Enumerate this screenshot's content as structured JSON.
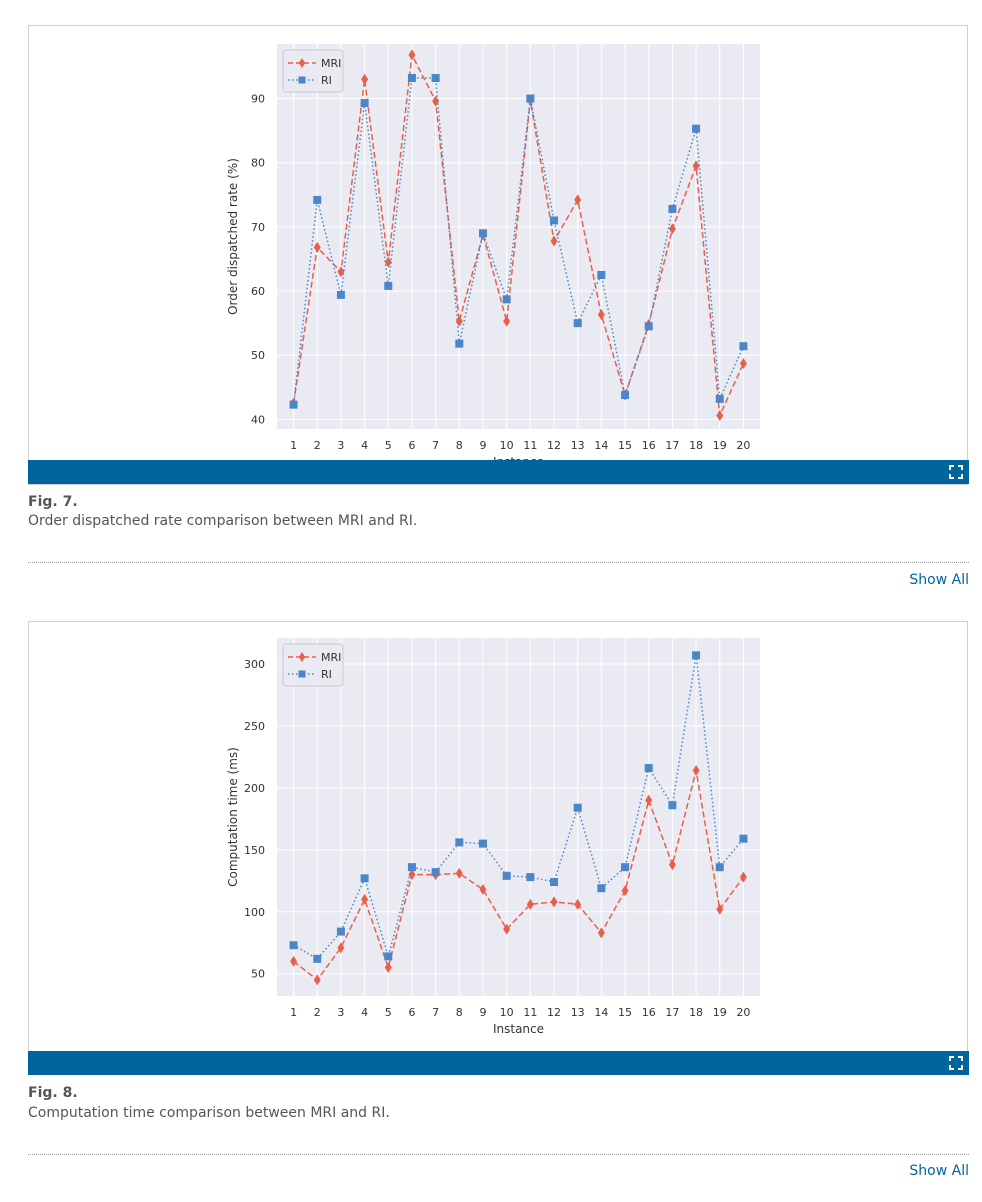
{
  "figures": [
    {
      "label": "Fig. 7.",
      "caption": "Order dispatched rate comparison between MRI and RI.",
      "show_all": "Show All",
      "chart_data": {
        "type": "line",
        "x": [
          1,
          2,
          3,
          4,
          5,
          6,
          7,
          8,
          9,
          10,
          11,
          12,
          13,
          14,
          15,
          16,
          17,
          18,
          19,
          20
        ],
        "xlabel": "Instance",
        "ylabel": "Order dispatched rate (%)",
        "ylim": [
          38.5,
          98.5
        ],
        "yticks": [
          40,
          50,
          60,
          70,
          80,
          90
        ],
        "grid": true,
        "legend": "top-left",
        "series": [
          {
            "name": "MRI",
            "color": "#e8604c",
            "marker": "diamond",
            "linestyle": "dashed",
            "values": [
              42.5,
              66.8,
              63,
              93,
              64.5,
              96.8,
              89.6,
              55.3,
              68.8,
              55.3,
              89.7,
              67.8,
              74.2,
              56.3,
              43.8,
              54.8,
              69.7,
              79.5,
              40.6,
              48.7
            ]
          },
          {
            "name": "RI",
            "color": "#4a86c8",
            "marker": "square",
            "linestyle": "dotted",
            "values": [
              42.3,
              74.2,
              59.4,
              89.3,
              60.8,
              93.2,
              93.2,
              51.8,
              69,
              58.7,
              90,
              71,
              55,
              62.5,
              43.8,
              54.5,
              72.8,
              85.3,
              43.2,
              51.4
            ]
          }
        ]
      }
    },
    {
      "label": "Fig. 8.",
      "caption": "Computation time comparison between MRI and RI.",
      "show_all": "Show All",
      "chart_data": {
        "type": "line",
        "x": [
          1,
          2,
          3,
          4,
          5,
          6,
          7,
          8,
          9,
          10,
          11,
          12,
          13,
          14,
          15,
          16,
          17,
          18,
          19,
          20
        ],
        "xlabel": "Instance",
        "ylabel": "Computation time (ms)",
        "ylim": [
          32,
          321
        ],
        "yticks": [
          50,
          100,
          150,
          200,
          250,
          300
        ],
        "grid": true,
        "legend": "top-left",
        "series": [
          {
            "name": "MRI",
            "color": "#e8604c",
            "marker": "diamond",
            "linestyle": "dashed",
            "values": [
              60,
              45,
              71,
              110,
              55,
              130,
              130,
              131,
              118,
              86,
              106,
              108,
              106,
              83,
              117,
              190,
              138,
              214,
              102,
              128
            ]
          },
          {
            "name": "RI",
            "color": "#4a86c8",
            "marker": "square",
            "linestyle": "dotted",
            "values": [
              73,
              62,
              84,
              127,
              64,
              136,
              132,
              156,
              155,
              129,
              128,
              124,
              184,
              119,
              136,
              216,
              186,
              307,
              136,
              159
            ]
          }
        ]
      }
    }
  ]
}
